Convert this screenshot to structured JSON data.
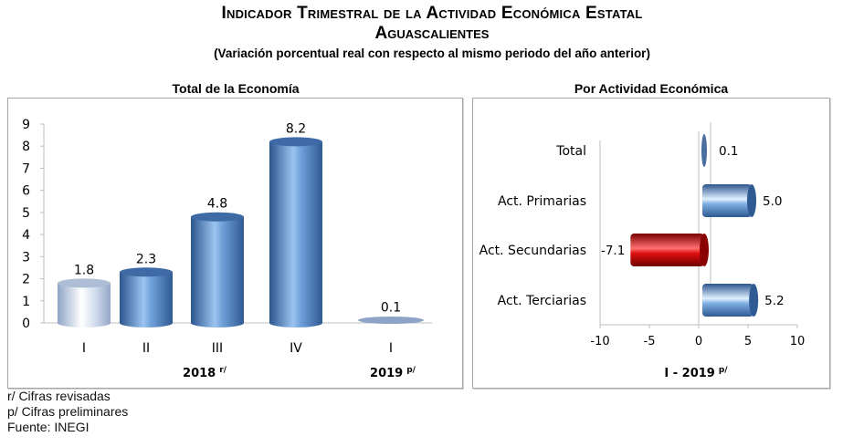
{
  "header": {
    "title_line1": "Indicador Trimestral de la Actividad Económica Estatal",
    "title_line2": "Aguascalientes",
    "subtitle": "(Variación porcentual real con respecto al mismo periodo del año anterior)"
  },
  "colors": {
    "blue_bar": "#4a7ebb",
    "light_bar": "#c9d6ea",
    "red_bar": "#c00000",
    "axis": "#bfbfbf"
  },
  "chart_data": [
    {
      "type": "bar",
      "title": "Total de la Economía",
      "categories": [
        "I",
        "II",
        "III",
        "IV",
        "I"
      ],
      "groups": [
        {
          "label": "2018",
          "superscript": "r/",
          "span": [
            0,
            3
          ]
        },
        {
          "label": "2019",
          "superscript": "p/",
          "span": [
            4,
            4
          ]
        }
      ],
      "values": [
        1.8,
        2.3,
        4.8,
        8.2,
        0.1
      ],
      "data_labels": [
        "1.8",
        "2.3",
        "4.8",
        "8.2",
        "0.1"
      ],
      "yticks": [
        "0",
        "1",
        "2",
        "3",
        "4",
        "5",
        "6",
        "7",
        "8",
        "9"
      ],
      "ylim": [
        0,
        9
      ],
      "xlabel": "",
      "ylabel": "",
      "style": "3d-cylinder",
      "grid": false
    },
    {
      "type": "bar",
      "orientation": "horizontal",
      "title": "Por Actividad Económica",
      "categories": [
        "Total",
        "Act. Primarias",
        "Act. Secundarias",
        "Act. Terciarias"
      ],
      "values": [
        0.1,
        5.0,
        -7.1,
        5.2
      ],
      "data_labels": [
        "0.1",
        "5.0",
        "-7.1",
        "5.2"
      ],
      "xticks": [
        "-10",
        "-5",
        "0",
        "5",
        "10"
      ],
      "xlim": [
        -10,
        10
      ],
      "xlabel": "I - 2019",
      "xlabel_superscript": "p/",
      "style": "3d-cylinder",
      "grid": false
    }
  ],
  "notes": [
    "r/ Cifras revisadas",
    "p/ Cifras preliminares",
    "Fuente: INEGI"
  ]
}
